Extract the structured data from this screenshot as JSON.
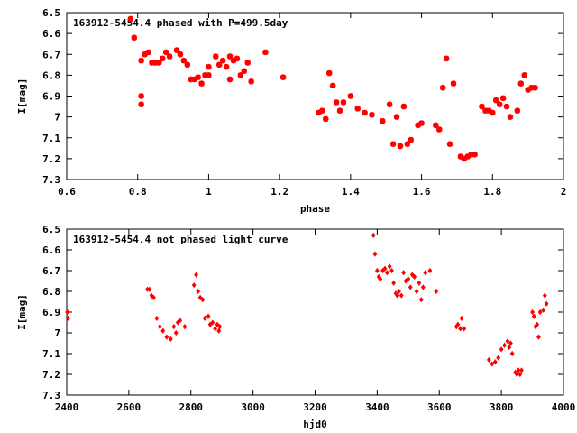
{
  "chart_data": [
    {
      "type": "scatter",
      "title": "163912-5454.4 phased with P=499.5day",
      "xlabel": "phase",
      "ylabel": "I[mag]",
      "xlim": [
        0.6,
        2.0
      ],
      "ylim": [
        6.5,
        7.3
      ],
      "y_inverted": true,
      "x_ticks": [
        "0.6",
        "0.8",
        "1",
        "1.2",
        "1.4",
        "1.6",
        "1.8",
        "2"
      ],
      "y_ticks": [
        "6.5",
        "6.6",
        "6.7",
        "6.8",
        "6.9",
        "7",
        "7.1",
        "7.2",
        "7.3"
      ],
      "marker": "star",
      "color": "#ff0000",
      "grid": false,
      "x": [
        0.78,
        0.79,
        0.81,
        0.81,
        0.81,
        0.82,
        0.83,
        0.84,
        0.85,
        0.86,
        0.87,
        0.88,
        0.89,
        0.91,
        0.92,
        0.93,
        0.94,
        0.95,
        0.96,
        0.97,
        0.98,
        0.99,
        1.0,
        1.0,
        1.02,
        1.03,
        1.04,
        1.05,
        1.06,
        1.06,
        1.07,
        1.08,
        1.09,
        1.1,
        1.11,
        1.12,
        1.16,
        1.21,
        1.31,
        1.32,
        1.33,
        1.34,
        1.35,
        1.36,
        1.37,
        1.38,
        1.4,
        1.42,
        1.44,
        1.46,
        1.49,
        1.51,
        1.52,
        1.53,
        1.54,
        1.55,
        1.56,
        1.57,
        1.59,
        1.6,
        1.64,
        1.65,
        1.66,
        1.67,
        1.68,
        1.69,
        1.71,
        1.72,
        1.73,
        1.74,
        1.75,
        1.77,
        1.78,
        1.79,
        1.8,
        1.81,
        1.82,
        1.83,
        1.84,
        1.85,
        1.87,
        1.88,
        1.89,
        1.9,
        1.91,
        1.92
      ],
      "y": [
        6.53,
        6.62,
        6.94,
        6.9,
        6.73,
        6.7,
        6.69,
        6.74,
        6.74,
        6.74,
        6.72,
        6.69,
        6.71,
        6.68,
        6.7,
        6.73,
        6.75,
        6.82,
        6.82,
        6.81,
        6.84,
        6.8,
        6.76,
        6.8,
        6.71,
        6.75,
        6.73,
        6.76,
        6.71,
        6.82,
        6.73,
        6.72,
        6.8,
        6.78,
        6.74,
        6.83,
        6.69,
        6.81,
        6.98,
        6.97,
        7.01,
        6.79,
        6.85,
        6.93,
        6.97,
        6.93,
        6.9,
        6.96,
        6.98,
        6.99,
        7.02,
        6.94,
        7.13,
        7.0,
        7.14,
        6.95,
        7.13,
        7.11,
        7.04,
        7.03,
        7.04,
        7.06,
        6.86,
        6.72,
        7.13,
        6.84,
        7.19,
        7.2,
        7.19,
        7.18,
        7.18,
        6.95,
        6.97,
        6.97,
        6.98,
        6.92,
        6.94,
        6.91,
        6.95,
        7.0,
        6.97,
        6.84,
        6.8,
        6.87,
        6.86,
        6.86
      ]
    },
    {
      "type": "scatter",
      "title": "163912-5454.4 not phased light curve",
      "xlabel": "hjd0",
      "ylabel": "I[mag]",
      "xlim": [
        2400,
        4000
      ],
      "ylim": [
        6.5,
        7.3
      ],
      "y_inverted": true,
      "x_ticks": [
        "2400",
        "2600",
        "2800",
        "3000",
        "3200",
        "3400",
        "3600",
        "3800",
        "4000"
      ],
      "y_ticks": [
        "6.5",
        "6.6",
        "6.7",
        "6.8",
        "6.9",
        "7",
        "7.1",
        "7.2",
        "7.3"
      ],
      "marker": "diamond",
      "color": "#ff0000",
      "grid": false,
      "x": [
        2402,
        2405,
        2660,
        2667,
        2673,
        2680,
        2690,
        2700,
        2710,
        2722,
        2735,
        2745,
        2752,
        2758,
        2765,
        2780,
        2810,
        2817,
        2823,
        2830,
        2838,
        2845,
        2856,
        2862,
        2870,
        2878,
        2885,
        2890,
        2893,
        3388,
        3393,
        3400,
        3405,
        3410,
        3418,
        3425,
        3432,
        3440,
        3447,
        3453,
        3460,
        3465,
        3470,
        3478,
        3485,
        3492,
        3500,
        3507,
        3513,
        3520,
        3527,
        3535,
        3542,
        3548,
        3555,
        3570,
        3590,
        3655,
        3660,
        3668,
        3672,
        3680,
        3760,
        3770,
        3780,
        3790,
        3800,
        3810,
        3820,
        3825,
        3830,
        3835,
        3845,
        3850,
        3855,
        3860,
        3865,
        3900,
        3905,
        3910,
        3915,
        3920,
        3925,
        3935,
        3940,
        3945
      ],
      "y": [
        6.9,
        6.93,
        6.79,
        6.79,
        6.82,
        6.83,
        6.93,
        6.97,
        6.99,
        7.02,
        7.03,
        6.97,
        7.0,
        6.95,
        6.94,
        6.97,
        6.77,
        6.72,
        6.8,
        6.83,
        6.84,
        6.93,
        6.92,
        6.96,
        6.95,
        6.98,
        6.96,
        6.99,
        6.97,
        6.53,
        6.62,
        6.7,
        6.73,
        6.74,
        6.7,
        6.69,
        6.71,
        6.68,
        6.7,
        6.76,
        6.81,
        6.82,
        6.8,
        6.82,
        6.71,
        6.75,
        6.74,
        6.78,
        6.72,
        6.73,
        6.8,
        6.76,
        6.84,
        6.78,
        6.71,
        6.7,
        6.8,
        6.97,
        6.96,
        6.98,
        6.93,
        6.98,
        7.13,
        7.15,
        7.14,
        7.12,
        7.08,
        7.06,
        7.04,
        7.07,
        7.05,
        7.1,
        7.19,
        7.2,
        7.18,
        7.2,
        7.18,
        6.9,
        6.92,
        6.97,
        6.96,
        7.02,
        6.9,
        6.89,
        6.82,
        6.86
      ]
    }
  ]
}
